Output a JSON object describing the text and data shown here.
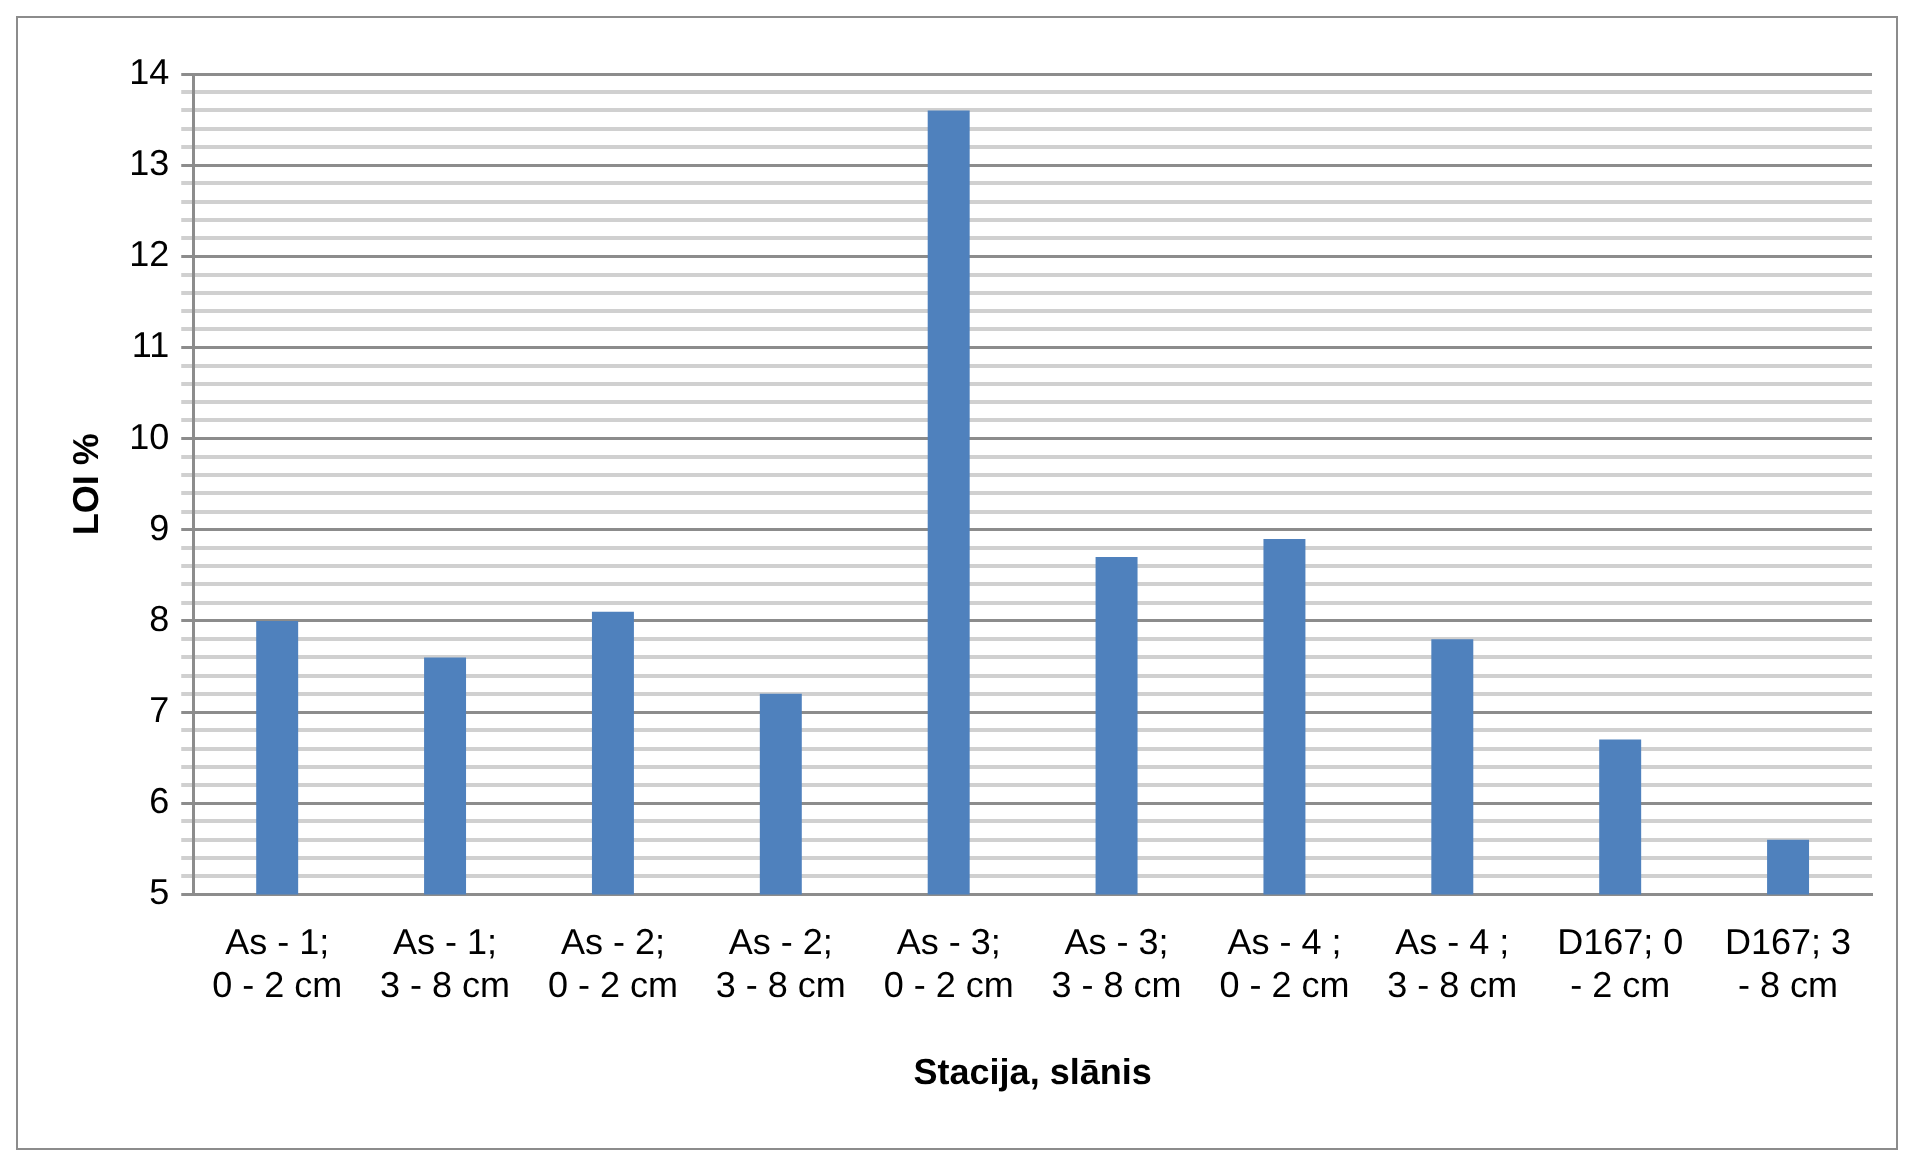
{
  "chart_data": {
    "type": "bar",
    "xlabel": "Stacija, slānis",
    "ylabel": "LOI %",
    "categories": [
      "As - 1; 0 - 2 cm",
      "As - 1; 3 - 8 cm",
      "As - 2; 0 - 2 cm",
      "As - 2; 3 - 8 cm",
      "As - 3; 0 - 2 cm",
      "As - 3; 3 - 8 cm",
      "As - 4 ; 0 - 2 cm",
      "As - 4 ; 3 - 8 cm",
      "D167; 0 - 2 cm",
      "D167; 3 - 8 cm"
    ],
    "values": [
      8.0,
      7.6,
      8.1,
      7.2,
      13.6,
      8.7,
      8.9,
      7.8,
      6.7,
      5.6
    ],
    "color": "#4f81bd",
    "ylim": [
      5,
      14
    ],
    "yticks": [
      5,
      {
        "value": 5.2,
        "label": null
      },
      {
        "value": 5.4,
        "label": null
      },
      {
        "value": 5.6,
        "label": null
      },
      {
        "value": 5.8,
        "label": null
      },
      6,
      {
        "value": 6.2,
        "label": null
      },
      {
        "value": 6.4,
        "label": null
      },
      {
        "value": 6.6,
        "label": null
      },
      {
        "value": 6.8,
        "label": null
      },
      7,
      {
        "value": 7.2,
        "label": null
      },
      {
        "value": 7.4,
        "label": null
      },
      {
        "value": 7.6,
        "label": null
      },
      {
        "value": 7.8,
        "label": null
      },
      8,
      {
        "value": 8.2,
        "label": null
      },
      {
        "value": 8.4,
        "label": null
      },
      {
        "value": 8.6,
        "label": null
      },
      {
        "value": 8.8,
        "label": null
      },
      9,
      {
        "value": 9.2,
        "label": null
      },
      {
        "value": 9.4,
        "label": null
      },
      {
        "value": 9.6,
        "label": null
      },
      {
        "value": 9.8,
        "label": null
      },
      10,
      {
        "value": 10.2,
        "label": null
      },
      {
        "value": 10.4,
        "label": null
      },
      {
        "value": 10.6,
        "label": null
      },
      {
        "value": 10.8,
        "label": null
      },
      11,
      {
        "value": 11.2,
        "label": null
      },
      {
        "value": 11.4,
        "label": null
      },
      {
        "value": 11.6,
        "label": null
      },
      {
        "value": 11.8,
        "label": null
      },
      12,
      {
        "value": 12.2,
        "label": null
      },
      {
        "value": 12.4,
        "label": null
      },
      {
        "value": 12.6,
        "label": null
      },
      {
        "value": 12.8,
        "label": null
      },
      13,
      {
        "value": 13.2,
        "label": null
      },
      {
        "value": 13.4,
        "label": null
      },
      {
        "value": 13.6,
        "label": null
      },
      {
        "value": 13.8,
        "label": null
      },
      14
    ],
    "grid": "y"
  }
}
